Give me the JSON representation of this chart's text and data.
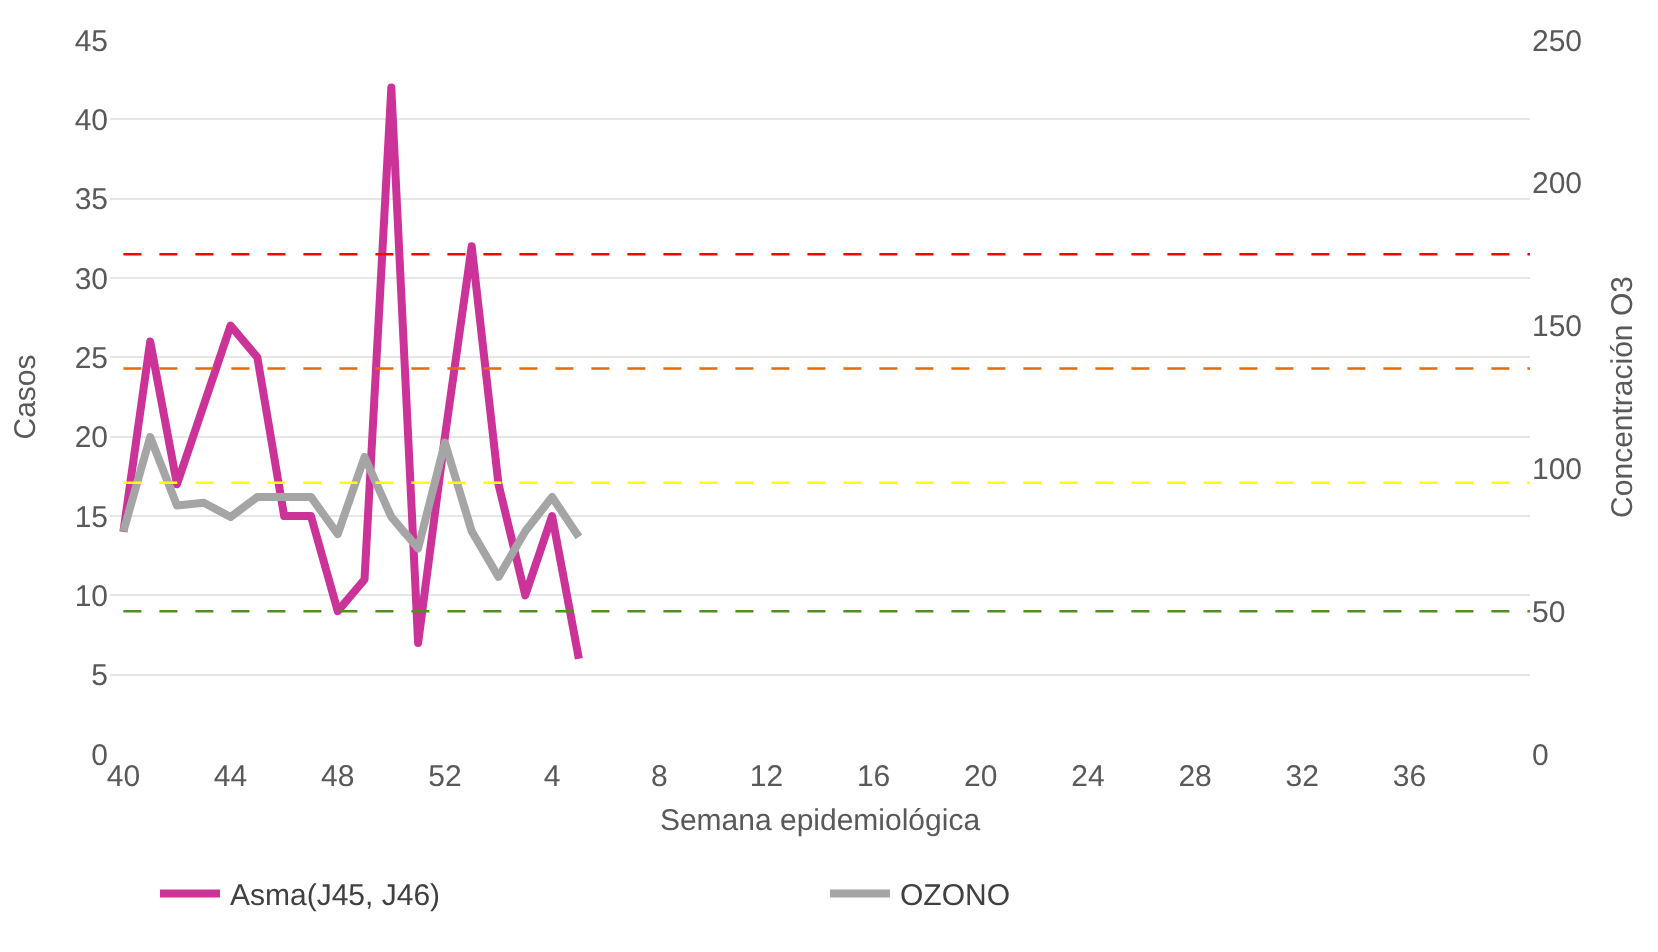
{
  "chart_data": {
    "type": "line",
    "xlabel": "Semana epidemiológica",
    "ylabel": "Casos",
    "y2label": "Concentración O3",
    "categories": [
      "40",
      null,
      null,
      null,
      "44",
      null,
      null,
      null,
      "48",
      null,
      null,
      null,
      "52",
      null,
      null,
      null,
      "4",
      null,
      null,
      null,
      "8",
      null,
      null,
      null,
      "12",
      null,
      null,
      null,
      "16",
      null,
      null,
      null,
      "20",
      null,
      null,
      null,
      "24",
      null,
      null,
      null,
      "28",
      null,
      null,
      null,
      "32",
      null,
      null,
      null,
      "36",
      null,
      null,
      null,
      null
    ],
    "series": [
      {
        "name": "Asma(J45, J46)",
        "color": "#cc3399",
        "values": [
          14,
          26,
          17,
          22,
          27,
          25,
          15,
          15,
          9,
          11,
          42,
          7,
          20,
          32,
          17,
          10,
          15,
          6,
          null,
          null,
          null,
          null,
          null,
          null,
          null,
          null,
          null,
          null,
          null,
          null,
          null,
          null,
          null,
          null,
          null,
          null,
          null,
          null,
          null,
          null,
          null,
          null,
          null,
          null,
          null,
          null,
          null,
          null,
          null,
          null,
          null,
          null,
          null
        ]
      },
      {
        "name": "OZONO",
        "color": "#a5a5a5",
        "axis": "y2",
        "values": [
          78,
          111,
          87,
          88,
          83,
          90,
          90,
          90,
          77,
          104,
          83,
          72,
          109,
          78,
          62,
          78,
          90,
          76,
          null,
          null,
          null,
          null,
          null,
          null,
          null,
          null,
          null,
          null,
          null,
          null,
          null,
          null,
          null,
          null,
          null,
          null,
          null,
          null,
          null,
          null,
          null,
          null,
          null,
          null,
          null,
          null,
          null,
          null,
          null,
          null,
          null,
          null,
          null
        ]
      }
    ],
    "ylim": [
      0,
      45
    ],
    "yticks": [
      0,
      5,
      10,
      15,
      20,
      25,
      30,
      35,
      40,
      45
    ],
    "y2lim": [
      0,
      250
    ],
    "y2ticks": [
      0,
      50,
      100,
      150,
      200,
      250
    ],
    "ref_lines": [
      {
        "axis": "y2",
        "value": 175,
        "color": "#ff0000",
        "line_style": "dashed"
      },
      {
        "axis": "y2",
        "value": 135,
        "color": "#e46c0a",
        "line_style": "dashed"
      },
      {
        "axis": "y2",
        "value": 95,
        "color": "#ffff00",
        "line_style": "dashed"
      },
      {
        "axis": "y2",
        "value": 50,
        "color": "#4e8f1f",
        "line_style": "dashed"
      }
    ],
    "grid": "y",
    "legend": "bottom",
    "marker": "none",
    "line_style": "solid"
  }
}
